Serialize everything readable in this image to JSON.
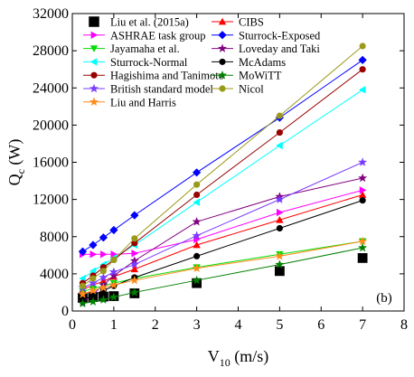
{
  "chart_data": {
    "type": "line",
    "panel_label": "(b)",
    "xlabel": "V",
    "xlabel_sub": "10",
    "xlabel_unit": " (m/s)",
    "ylabel": "Q",
    "ylabel_sub": "c",
    "ylabel_unit": " (W)",
    "xlim": [
      0,
      8
    ],
    "ylim": [
      0,
      32000
    ],
    "xticks": [
      0,
      1,
      2,
      3,
      4,
      5,
      6,
      7,
      8
    ],
    "yticks": [
      0,
      4000,
      8000,
      12000,
      16000,
      20000,
      24000,
      28000,
      32000
    ],
    "legend_placement": "top-left",
    "series": [
      {
        "name": "Liu et al. (2015a)",
        "color": "#000000",
        "marker": "square",
        "line": false,
        "x": [
          0.25,
          0.5,
          0.75,
          1.0,
          1.5,
          3.0,
          5.0,
          7.0
        ],
        "y": [
          1400,
          1500,
          1550,
          1600,
          1900,
          3000,
          4300,
          5700
        ]
      },
      {
        "name": "CIBS",
        "color": "#ff0000",
        "marker": "triangle-up",
        "line": true,
        "x": [
          0.25,
          0.5,
          0.75,
          1.0,
          1.5,
          3.0,
          5.0,
          7.0
        ],
        "y": [
          2300,
          2800,
          3200,
          3700,
          4500,
          7100,
          9800,
          12500
        ]
      },
      {
        "name": "ASHRAE task group",
        "color": "#ff00ff",
        "marker": "triangle-right",
        "line": true,
        "x": [
          0.25,
          0.5,
          0.75,
          1.0,
          1.5,
          3.0,
          5.0,
          7.0
        ],
        "y": [
          6100,
          6100,
          6100,
          6100,
          6200,
          7700,
          10600,
          13000
        ]
      },
      {
        "name": "Sturrock-Exposed",
        "color": "#0000ff",
        "marker": "diamond",
        "line": true,
        "x": [
          0.25,
          0.5,
          0.75,
          1.0,
          1.5,
          3.0,
          5.0,
          7.0
        ],
        "y": [
          6400,
          7100,
          7900,
          8700,
          10300,
          14900,
          20800,
          27000
        ]
      },
      {
        "name": "Jayamaha et al.",
        "color": "#00dd00",
        "marker": "triangle-down",
        "line": true,
        "x": [
          0.25,
          0.5,
          0.75,
          1.0,
          1.5,
          3.0,
          5.0,
          7.0
        ],
        "y": [
          2100,
          2400,
          2700,
          3000,
          3500,
          4700,
          6100,
          7500
        ]
      },
      {
        "name": "Loveday and Taki",
        "color": "#800080",
        "marker": "star",
        "line": true,
        "x": [
          0.25,
          0.5,
          0.75,
          1.0,
          1.5,
          3.0,
          5.0,
          7.0
        ],
        "y": [
          1000,
          1800,
          2800,
          3800,
          5400,
          9600,
          12300,
          14300
        ]
      },
      {
        "name": "Sturrock-Normal",
        "color": "#00ffff",
        "marker": "triangle-left",
        "line": true,
        "x": [
          0.25,
          0.5,
          0.75,
          1.0,
          1.5,
          3.0,
          5.0,
          7.0
        ],
        "y": [
          3500,
          4300,
          5000,
          5700,
          7100,
          11700,
          17800,
          23800
        ]
      },
      {
        "name": "McAdams",
        "color": "#000000",
        "marker": "circle",
        "line": true,
        "x": [
          0.25,
          0.5,
          0.75,
          1.0,
          1.5,
          3.0,
          5.0,
          7.0
        ],
        "y": [
          1200,
          1700,
          2200,
          2700,
          3600,
          5900,
          8900,
          11900
        ]
      },
      {
        "name": "Hagishima and Tanimoto",
        "color": "#990000",
        "marker": "circle",
        "line": true,
        "x": [
          0.25,
          0.5,
          0.75,
          1.0,
          1.5,
          3.0,
          5.0,
          7.0
        ],
        "y": [
          3000,
          3800,
          4700,
          5500,
          7300,
          12500,
          19200,
          26000
        ]
      },
      {
        "name": "MoWiTT",
        "color": "#008000",
        "marker": "star",
        "line": true,
        "x": [
          0.25,
          0.5,
          0.75,
          1.0,
          1.5,
          3.0,
          5.0,
          7.0
        ],
        "y": [
          800,
          1000,
          1200,
          1500,
          2000,
          3300,
          5000,
          6800
        ]
      },
      {
        "name": "British standard model",
        "color": "#7a3cff",
        "marker": "star",
        "line": true,
        "x": [
          0.25,
          0.5,
          0.75,
          1.0,
          1.5,
          3.0,
          5.0,
          7.0
        ],
        "y": [
          2500,
          3000,
          3600,
          4200,
          5000,
          8100,
          12000,
          16000
        ]
      },
      {
        "name": "Nicol",
        "color": "#9a9a1a",
        "marker": "circle",
        "line": true,
        "x": [
          0.25,
          0.5,
          0.75,
          1.0,
          1.5,
          3.0,
          5.0,
          7.0
        ],
        "y": [
          2700,
          3500,
          4300,
          5500,
          7800,
          13600,
          21000,
          28500
        ]
      },
      {
        "name": "Liu and Harris",
        "color": "#ff8c1a",
        "marker": "star",
        "line": true,
        "x": [
          0.25,
          0.5,
          0.75,
          1.0,
          1.5,
          3.0,
          5.0,
          7.0
        ],
        "y": [
          1800,
          2200,
          2500,
          2800,
          3300,
          4600,
          5900,
          7500
        ]
      }
    ]
  }
}
